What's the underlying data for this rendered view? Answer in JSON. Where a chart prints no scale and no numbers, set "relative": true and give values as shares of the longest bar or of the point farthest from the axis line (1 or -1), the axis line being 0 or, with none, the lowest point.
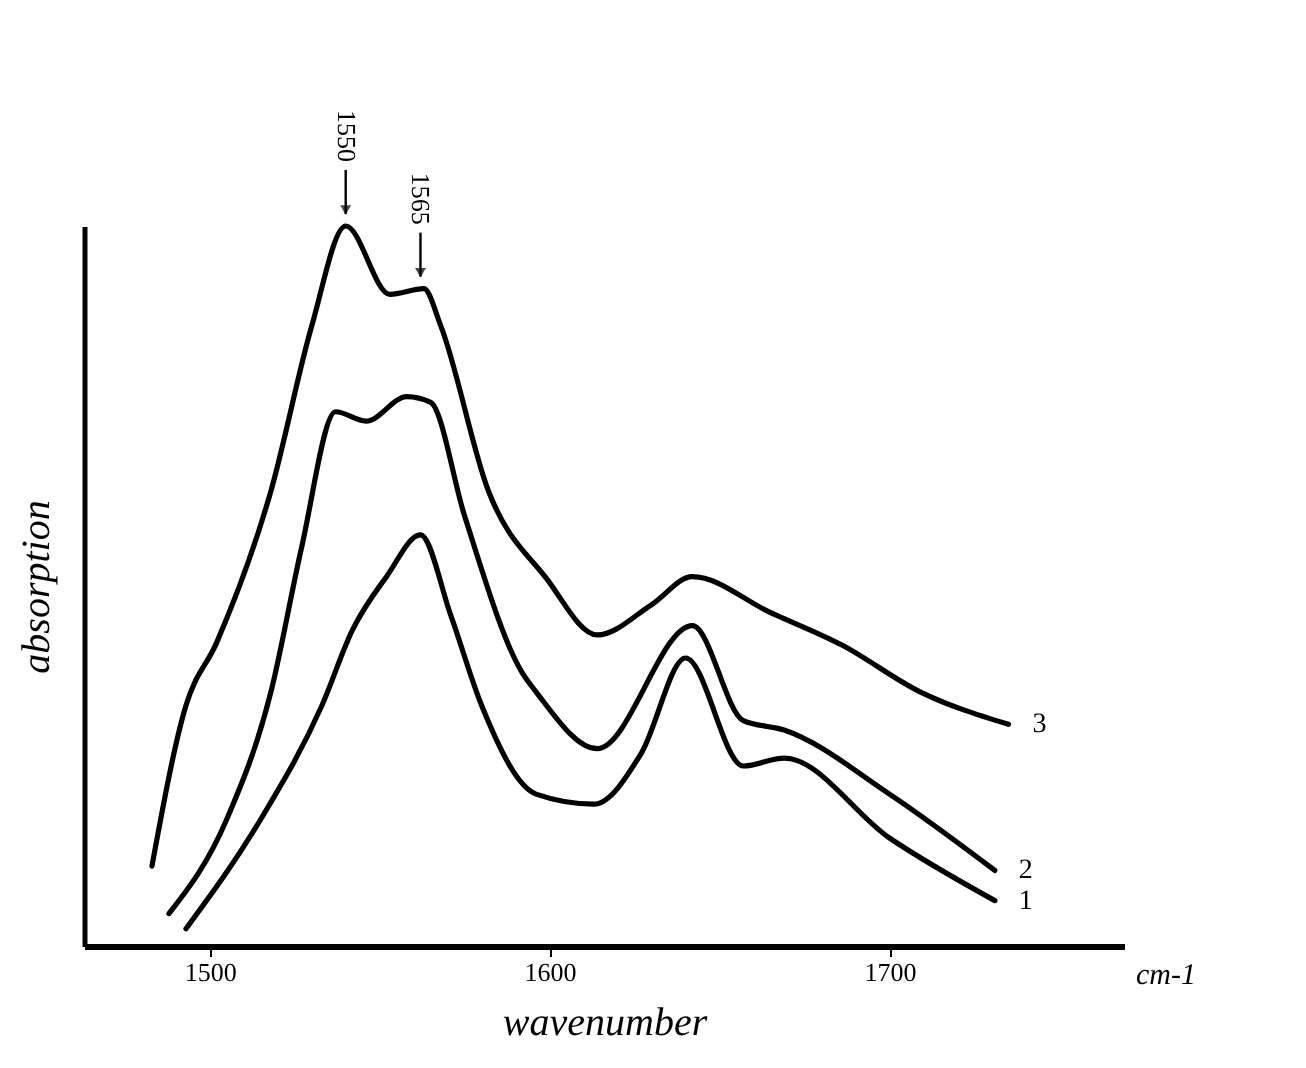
{
  "chart_data": {
    "type": "line",
    "relative": true,
    "xlabel": "wavenumber",
    "ylabel": "absorption",
    "xlim": [
      1463,
      1769
    ],
    "xticks": [
      {
        "value": 1500,
        "label": "1500"
      },
      {
        "value": 1600,
        "label": "1600"
      },
      {
        "value": 1700,
        "label": "1700"
      }
    ],
    "grid": false,
    "legend": false,
    "marker": "none",
    "line_style": "solid",
    "annotations": [
      {
        "text": "1550",
        "x": 1540,
        "y": 1
      },
      {
        "text": "1565",
        "x": 1562,
        "y": 0.913
      },
      "cm-1"
    ],
    "series": [
      {
        "name": "1",
        "color": "#000000",
        "x": [
          1493,
          1515,
          1533,
          1542,
          1552,
          1562,
          1571,
          1580,
          1596,
          1613,
          1627,
          1640,
          1657,
          1669,
          1700,
          1731
        ],
        "values": [
          0.024,
          0.176,
          0.334,
          0.439,
          0.513,
          0.571,
          0.458,
          0.334,
          0.211,
          0.197,
          0.268,
          0.4,
          0.25,
          0.261,
          0.15,
          0.063
        ]
      },
      {
        "name": "2",
        "color": "#000000",
        "x": [
          1488,
          1505,
          1518,
          1527,
          1537,
          1546,
          1558,
          1565,
          1575,
          1592,
          1596,
          1614,
          1642,
          1657,
          1669,
          1700,
          1731
        ],
        "values": [
          0.045,
          0.176,
          0.353,
          0.553,
          0.742,
          0.729,
          0.763,
          0.755,
          0.597,
          0.379,
          0.353,
          0.274,
          0.445,
          0.313,
          0.3,
          0.211,
          0.105
        ]
      },
      {
        "name": "3",
        "color": "#000000",
        "x": [
          1483,
          1493,
          1502,
          1518,
          1530,
          1540,
          1553,
          1563,
          1568,
          1582,
          1599,
          1614,
          1630,
          1642,
          1665,
          1686,
          1709,
          1735
        ],
        "values": [
          0.111,
          0.334,
          0.421,
          0.632,
          0.861,
          1,
          0.905,
          0.913,
          0.861,
          0.632,
          0.511,
          0.432,
          0.474,
          0.513,
          0.463,
          0.418,
          0.353,
          0.308
        ]
      }
    ]
  }
}
